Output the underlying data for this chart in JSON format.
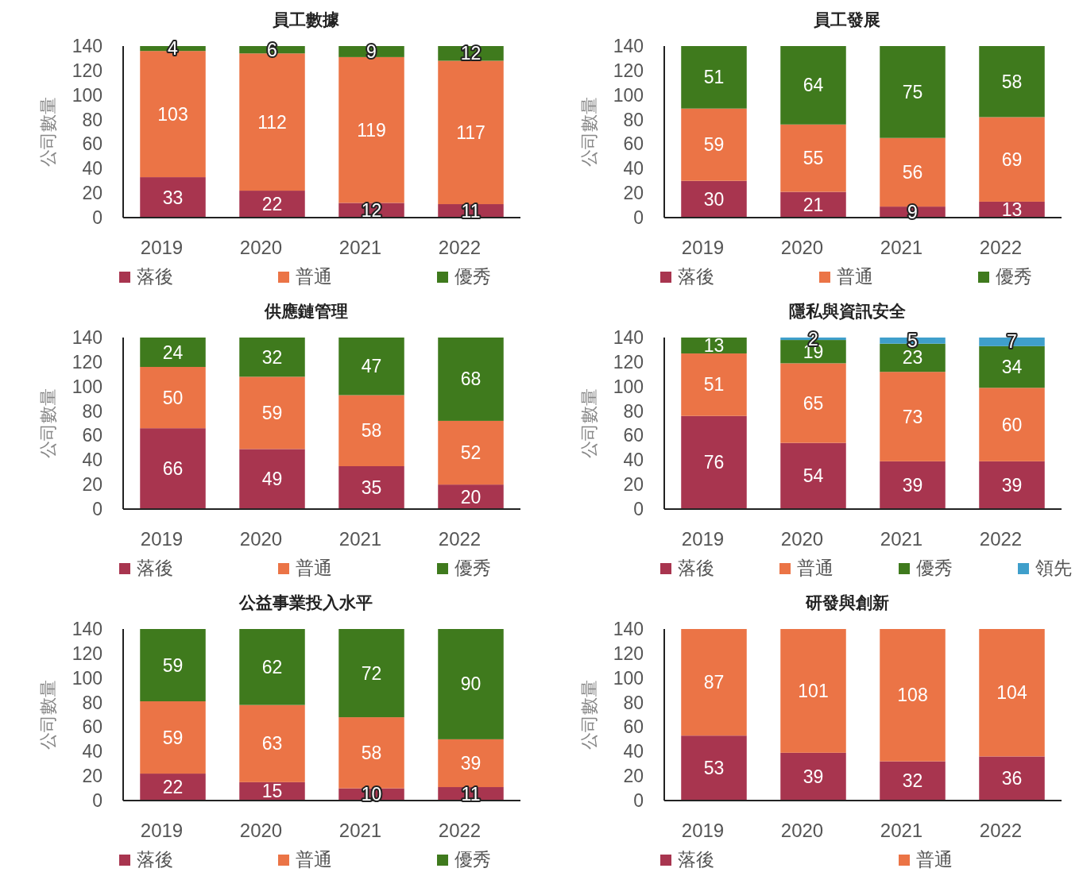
{
  "chart_data": [
    {
      "type": "bar",
      "title": "員工數據",
      "ylabel": "公司數量",
      "categories": [
        "2019",
        "2020",
        "2021",
        "2022"
      ],
      "stacked": true,
      "ylim": [
        0,
        140
      ],
      "yticks": [
        0,
        20,
        40,
        60,
        80,
        100,
        120,
        140
      ],
      "data_labels": true,
      "legend": "bottom",
      "grid": false,
      "series": [
        {
          "name": "落後",
          "color": "#a8354f",
          "values": [
            33,
            22,
            12,
            11
          ]
        },
        {
          "name": "普通",
          "color": "#eb7446",
          "values": [
            103,
            112,
            119,
            117
          ]
        },
        {
          "name": "優秀",
          "color": "#3f7a1d",
          "values": [
            4,
            6,
            9,
            12
          ]
        }
      ]
    },
    {
      "type": "bar",
      "title": "員工發展",
      "ylabel": "公司數量",
      "categories": [
        "2019",
        "2020",
        "2021",
        "2022"
      ],
      "stacked": true,
      "ylim": [
        0,
        140
      ],
      "yticks": [
        0,
        20,
        40,
        60,
        80,
        100,
        120,
        140
      ],
      "data_labels": true,
      "legend": "bottom",
      "grid": false,
      "series": [
        {
          "name": "落後",
          "color": "#a8354f",
          "values": [
            30,
            21,
            9,
            13
          ]
        },
        {
          "name": "普通",
          "color": "#eb7446",
          "values": [
            59,
            55,
            56,
            69
          ]
        },
        {
          "name": "優秀",
          "color": "#3f7a1d",
          "values": [
            51,
            64,
            75,
            58
          ]
        }
      ]
    },
    {
      "type": "bar",
      "title": "供應鏈管理",
      "ylabel": "公司數量",
      "categories": [
        "2019",
        "2020",
        "2021",
        "2022"
      ],
      "stacked": true,
      "ylim": [
        0,
        140
      ],
      "yticks": [
        0,
        20,
        40,
        60,
        80,
        100,
        120,
        140
      ],
      "data_labels": true,
      "legend": "bottom",
      "grid": false,
      "series": [
        {
          "name": "落後",
          "color": "#a8354f",
          "values": [
            66,
            49,
            35,
            20
          ]
        },
        {
          "name": "普通",
          "color": "#eb7446",
          "values": [
            50,
            59,
            58,
            52
          ]
        },
        {
          "name": "優秀",
          "color": "#3f7a1d",
          "values": [
            24,
            32,
            47,
            68
          ]
        }
      ]
    },
    {
      "type": "bar",
      "title": "隱私與資訊安全",
      "ylabel": "公司數量",
      "categories": [
        "2019",
        "2020",
        "2021",
        "2022"
      ],
      "stacked": true,
      "ylim": [
        0,
        140
      ],
      "yticks": [
        0,
        20,
        40,
        60,
        80,
        100,
        120,
        140
      ],
      "data_labels": true,
      "legend": "bottom",
      "grid": false,
      "series": [
        {
          "name": "落後",
          "color": "#a8354f",
          "values": [
            76,
            54,
            39,
            39
          ]
        },
        {
          "name": "普通",
          "color": "#eb7446",
          "values": [
            51,
            65,
            73,
            60
          ]
        },
        {
          "name": "優秀",
          "color": "#3f7a1d",
          "values": [
            13,
            19,
            23,
            34
          ]
        },
        {
          "name": "領先",
          "color": "#3f9fcb",
          "values": [
            null,
            2,
            5,
            7
          ]
        }
      ]
    },
    {
      "type": "bar",
      "title": "公益事業投入水平",
      "ylabel": "公司數量",
      "categories": [
        "2019",
        "2020",
        "2021",
        "2022"
      ],
      "stacked": true,
      "ylim": [
        0,
        140
      ],
      "yticks": [
        0,
        20,
        40,
        60,
        80,
        100,
        120,
        140
      ],
      "data_labels": true,
      "legend": "bottom",
      "grid": false,
      "series": [
        {
          "name": "落後",
          "color": "#a8354f",
          "values": [
            22,
            15,
            10,
            11
          ]
        },
        {
          "name": "普通",
          "color": "#eb7446",
          "values": [
            59,
            63,
            58,
            39
          ]
        },
        {
          "name": "優秀",
          "color": "#3f7a1d",
          "values": [
            59,
            62,
            72,
            90
          ]
        }
      ]
    },
    {
      "type": "bar",
      "title": "研發與創新",
      "ylabel": "公司數量",
      "categories": [
        "2019",
        "2020",
        "2021",
        "2022"
      ],
      "stacked": true,
      "ylim": [
        0,
        140
      ],
      "yticks": [
        0,
        20,
        40,
        60,
        80,
        100,
        120,
        140
      ],
      "data_labels": true,
      "legend": "bottom",
      "grid": false,
      "series": [
        {
          "name": "落後",
          "color": "#a8354f",
          "values": [
            53,
            39,
            32,
            36
          ]
        },
        {
          "name": "普通",
          "color": "#eb7446",
          "values": [
            87,
            101,
            108,
            104
          ]
        }
      ]
    }
  ]
}
